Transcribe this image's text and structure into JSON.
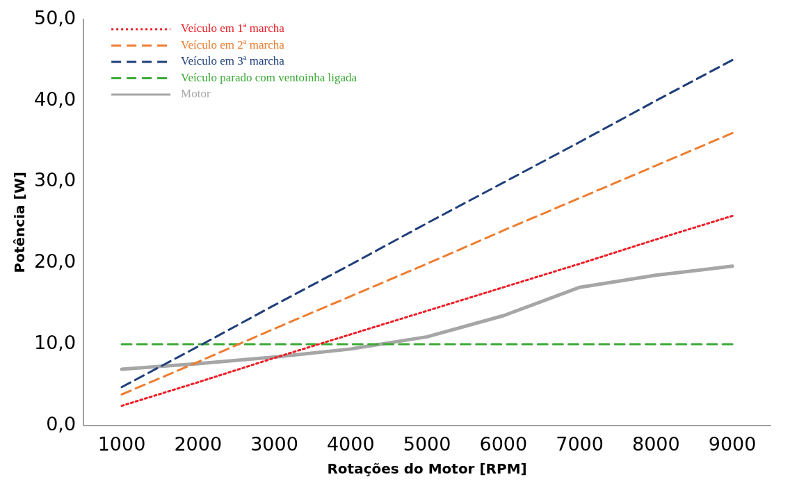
{
  "chart_data": {
    "type": "line",
    "xlabel": "Rotações do Motor [RPM]",
    "ylabel": "Potência [W]",
    "categories": [
      "1000",
      "2000",
      "3000",
      "4000",
      "5000",
      "6000",
      "7000",
      "8000",
      "9000"
    ],
    "ylim": [
      0,
      50
    ],
    "yticks": [
      {
        "value": 0,
        "label": "0,0"
      },
      {
        "value": 10,
        "label": "10,0"
      },
      {
        "value": 20,
        "label": "20,0"
      },
      {
        "value": 30,
        "label": "30,0"
      },
      {
        "value": 40,
        "label": "40,0"
      },
      {
        "value": 50,
        "label": "50,0"
      }
    ],
    "grid": false,
    "legend": "top left",
    "marker": "none",
    "series": [
      {
        "name": "Veículo em 1ª marcha",
        "color": "#ee1c25",
        "line_style": "dotted",
        "values": [
          2.4,
          5.3,
          8.3,
          11.2,
          14.1,
          17.0,
          19.9,
          22.9,
          25.8
        ]
      },
      {
        "name": "Veículo em 2ª marcha",
        "color": "#ed7d31",
        "line_style": "dashed",
        "values": [
          3.8,
          7.8,
          11.9,
          15.9,
          19.9,
          24.0,
          28.0,
          32.0,
          36.0
        ]
      },
      {
        "name": "Veículo em 3ª marcha",
        "color": "#1f3f7a",
        "line_style": "dashed",
        "values": [
          4.7,
          9.7,
          14.8,
          19.8,
          24.9,
          29.9,
          34.9,
          40.0,
          45.0
        ]
      },
      {
        "name": "Veículo parado com ventoinha ligada",
        "color": "#3aaa35",
        "line_style": "dashed",
        "values": [
          10.0,
          10.0,
          10.0,
          10.0,
          10.0,
          10.0,
          10.0,
          10.0,
          10.0
        ]
      },
      {
        "name": "Motor",
        "color": "#a6a6a6",
        "line_style": "solid",
        "values": [
          6.9,
          7.6,
          8.4,
          9.4,
          10.9,
          13.5,
          17.0,
          18.5,
          19.6
        ]
      }
    ]
  }
}
